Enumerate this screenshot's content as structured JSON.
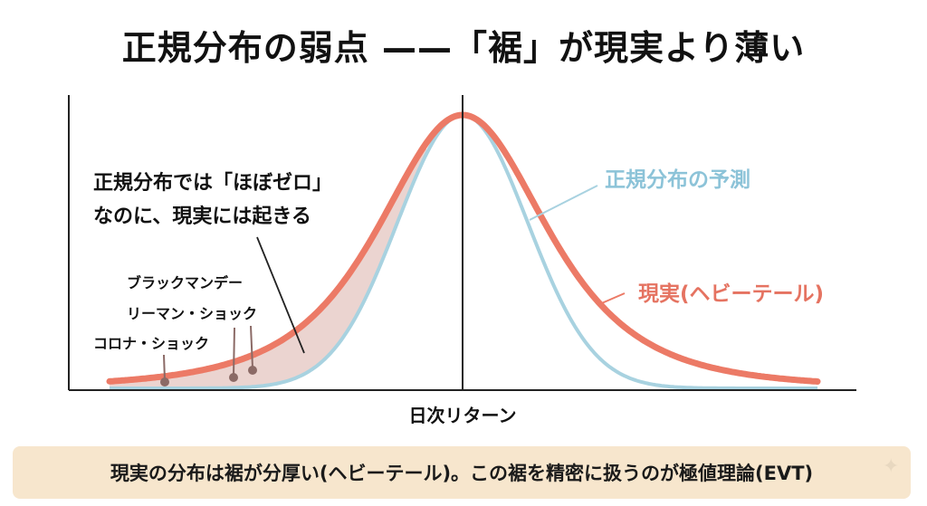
{
  "title": "正規分布の弱点 ——「裾」が現実より薄い",
  "labels": {
    "normal": "正規分布の予測",
    "real": "現実(ヘビーテール)",
    "xaxis": "日次リターン",
    "annotation_line1": "正規分布では「ほぼゼロ」",
    "annotation_line2": "なのに、現実には起きる",
    "event1": "ブラックマンデー",
    "event2": "リーマン・ショック",
    "event3": "コロナ・ショック"
  },
  "caption": "現実の分布は裾が分厚い(ヘビーテール)。この裾を精密に扱うのが極値理論(EVT)",
  "colors": {
    "normal_curve": "#a8d2e0",
    "real_curve": "#ec7a66",
    "fill": "#e9cfcb",
    "normal_label": "#8cc3d8",
    "real_label": "#e57361",
    "dots": "#8b6a66",
    "axis": "#222222",
    "caption_bg": "#f7e6cd"
  },
  "icons": {
    "sparkle": "sparkle-icon"
  }
}
